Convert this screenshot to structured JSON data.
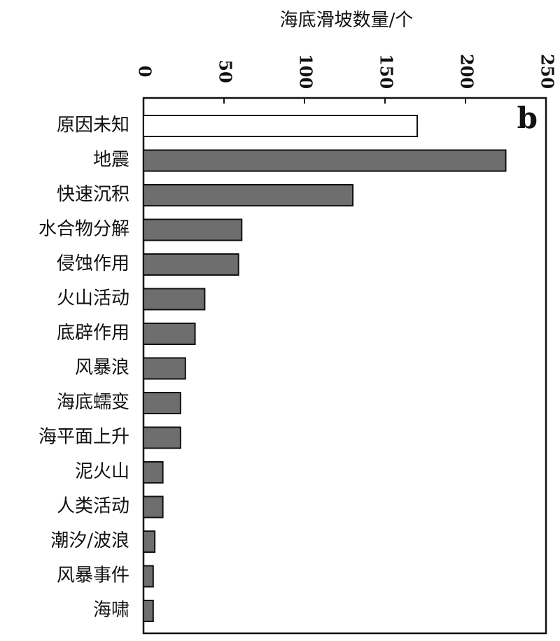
{
  "chart_data": {
    "type": "bar",
    "orientation": "horizontal",
    "x_label": "海底滑坡数量/个",
    "annotation": "b",
    "categories": [
      "原因未知",
      "地震",
      "快速沉积",
      "水合物分解",
      "侵蚀作用",
      "火山活动",
      "底辟作用",
      "风暴浪",
      "海底蠕变",
      "海平面上升",
      "泥火山",
      "人类活动",
      "潮汐/波浪",
      "风暴事件",
      "海啸"
    ],
    "values": [
      170,
      225,
      130,
      61,
      59,
      38,
      32,
      26,
      23,
      23,
      12,
      12,
      7,
      6,
      6
    ],
    "colors": [
      "#ffffff",
      "#6e6e6e",
      "#6e6e6e",
      "#6e6e6e",
      "#6e6e6e",
      "#6e6e6e",
      "#6e6e6e",
      "#6e6e6e",
      "#6e6e6e",
      "#6e6e6e",
      "#6e6e6e",
      "#6e6e6e",
      "#6e6e6e",
      "#6e6e6e",
      "#6e6e6e"
    ],
    "xlim": [
      0,
      250
    ],
    "xticks": [
      0,
      50,
      100,
      150,
      200,
      250
    ]
  }
}
